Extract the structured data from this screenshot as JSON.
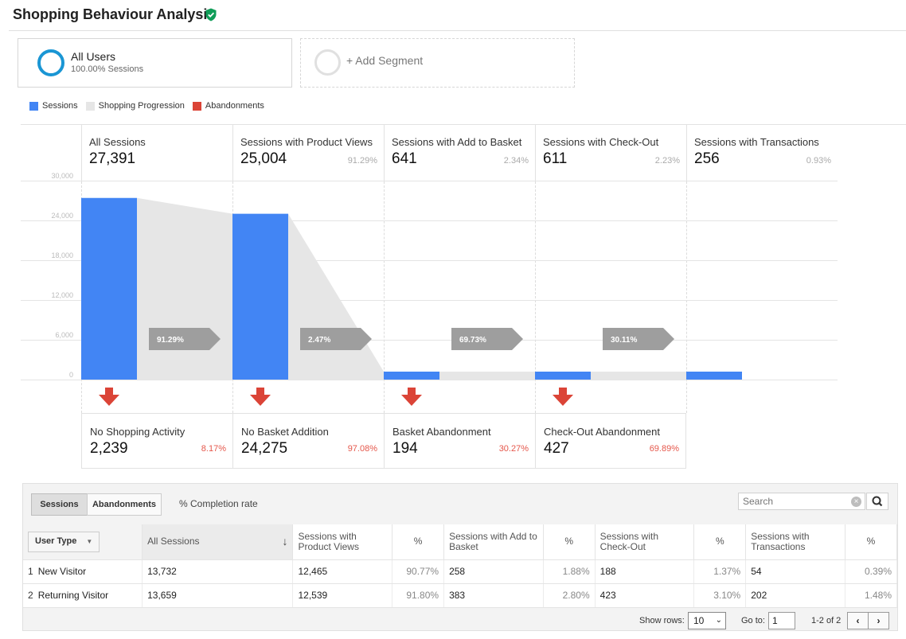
{
  "page": {
    "title": "Shopping Behaviour Analysis"
  },
  "segments": [
    {
      "title": "All Users",
      "subtitle": "100.00% Sessions"
    },
    {
      "title": "+ Add Segment"
    }
  ],
  "legend": [
    {
      "label": "Sessions",
      "color": "#4285f4"
    },
    {
      "label": "Shopping Progression",
      "color": "#e6e6e6"
    },
    {
      "label": "Abandonments",
      "color": "#db4437"
    }
  ],
  "stages": [
    {
      "label": "All Sessions",
      "value": "27,391",
      "pct": ""
    },
    {
      "label": "Sessions with Product Views",
      "value": "25,004",
      "pct": "91.29%"
    },
    {
      "label": "Sessions with Add to Basket",
      "value": "641",
      "pct": "2.34%"
    },
    {
      "label": "Sessions with Check-Out",
      "value": "611",
      "pct": "2.23%"
    },
    {
      "label": "Sessions with Transactions",
      "value": "256",
      "pct": "0.93%"
    }
  ],
  "progression_rates": [
    "91.29%",
    "2.47%",
    "69.73%",
    "30.11%"
  ],
  "y_ticks": [
    "30,000",
    "24,000",
    "18,000",
    "12,000",
    "6,000",
    "0"
  ],
  "abandonments": [
    {
      "label": "No Shopping Activity",
      "value": "2,239",
      "pct": "8.17%"
    },
    {
      "label": "No Basket Addition",
      "value": "24,275",
      "pct": "97.08%"
    },
    {
      "label": "Basket Abandonment",
      "value": "194",
      "pct": "30.27%"
    },
    {
      "label": "Check-Out Abandonment",
      "value": "427",
      "pct": "69.89%"
    }
  ],
  "chart_data": {
    "type": "bar",
    "categories": [
      "All Sessions",
      "Sessions with Product Views",
      "Sessions with Add to Basket",
      "Sessions with Check-Out",
      "Sessions with Transactions"
    ],
    "values": [
      27391,
      25004,
      641,
      611,
      256
    ],
    "ylim": [
      0,
      30000
    ],
    "yticks": [
      0,
      6000,
      12000,
      18000,
      24000,
      30000
    ],
    "grid": true,
    "legend_position": "top-left"
  },
  "table": {
    "tabs": [
      "Sessions",
      "Abandonments"
    ],
    "completion_label": "% Completion rate",
    "search_placeholder": "Search",
    "dimension_button": "User Type",
    "headers": [
      "All Sessions",
      "Sessions with Product Views",
      "%",
      "Sessions with Add to Basket",
      "%",
      "Sessions with Check-Out",
      "%",
      "Sessions with Transactions",
      "%"
    ],
    "rows": [
      {
        "idx": "1",
        "type": "New Visitor",
        "all": "13,732",
        "pv": "12,465",
        "pv_pct": "90.77%",
        "atb": "258",
        "atb_pct": "1.88%",
        "co": "188",
        "co_pct": "1.37%",
        "tx": "54",
        "tx_pct": "0.39%"
      },
      {
        "idx": "2",
        "type": "Returning Visitor",
        "all": "13,659",
        "pv": "12,539",
        "pv_pct": "91.80%",
        "atb": "383",
        "atb_pct": "2.80%",
        "co": "423",
        "co_pct": "3.10%",
        "tx": "202",
        "tx_pct": "1.48%"
      }
    ],
    "footer": {
      "show_rows_label": "Show rows:",
      "show_rows_value": "10",
      "goto_label": "Go to:",
      "goto_value": "1",
      "range": "1-2 of 2"
    }
  }
}
